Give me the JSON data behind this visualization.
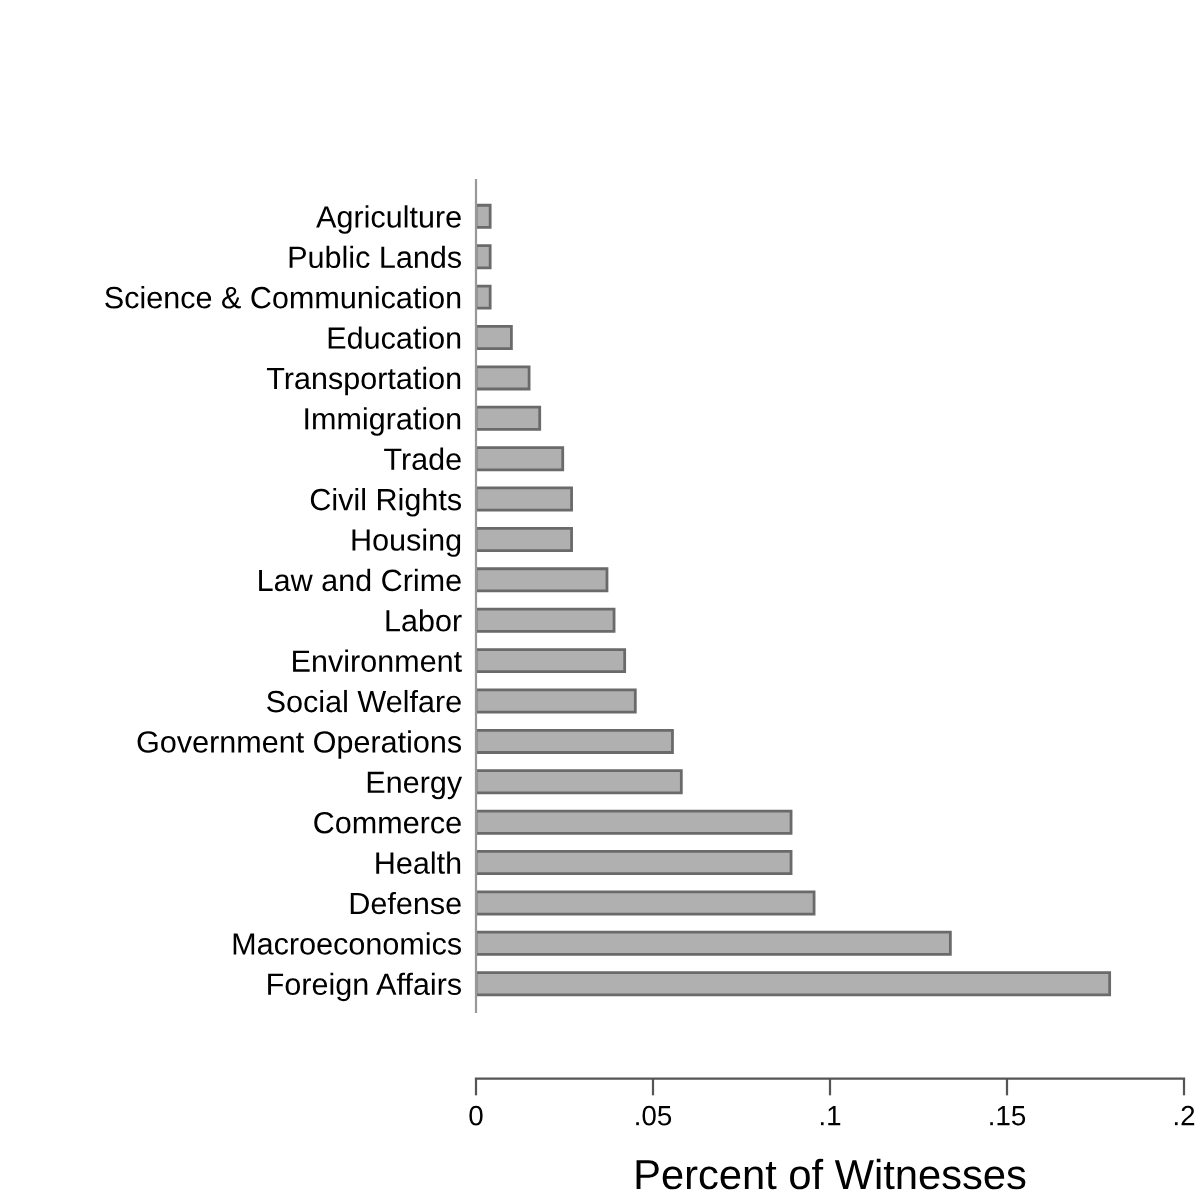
{
  "chart_data": {
    "type": "bar",
    "orientation": "horizontal",
    "xlabel": "Percent of Witnesses",
    "categories": [
      "Agriculture",
      "Public Lands",
      "Science & Communication",
      "Education",
      "Transportation",
      "Immigration",
      "Trade",
      "Civil Rights",
      "Housing",
      "Law and Crime",
      "Labor",
      "Environment",
      "Social Welfare",
      "Government Operations",
      "Energy",
      "Commerce",
      "Health",
      "Defense",
      "Macroeconomics",
      "Foreign Affairs"
    ],
    "values": [
      0.004,
      0.004,
      0.004,
      0.01,
      0.015,
      0.018,
      0.0245,
      0.027,
      0.027,
      0.037,
      0.039,
      0.042,
      0.045,
      0.0555,
      0.058,
      0.089,
      0.089,
      0.0955,
      0.134,
      0.179
    ],
    "color": "#b0b0b0",
    "xlim": [
      0,
      0.2
    ],
    "xticks": [
      0,
      {
        "value": 0.05,
        "label": ".05"
      },
      {
        "value": 0.1,
        "label": ".1"
      },
      {
        "value": 0.15,
        "label": ".15"
      },
      {
        "value": 0.2,
        "label": ".2"
      }
    ],
    "grid": false,
    "legend": false
  }
}
